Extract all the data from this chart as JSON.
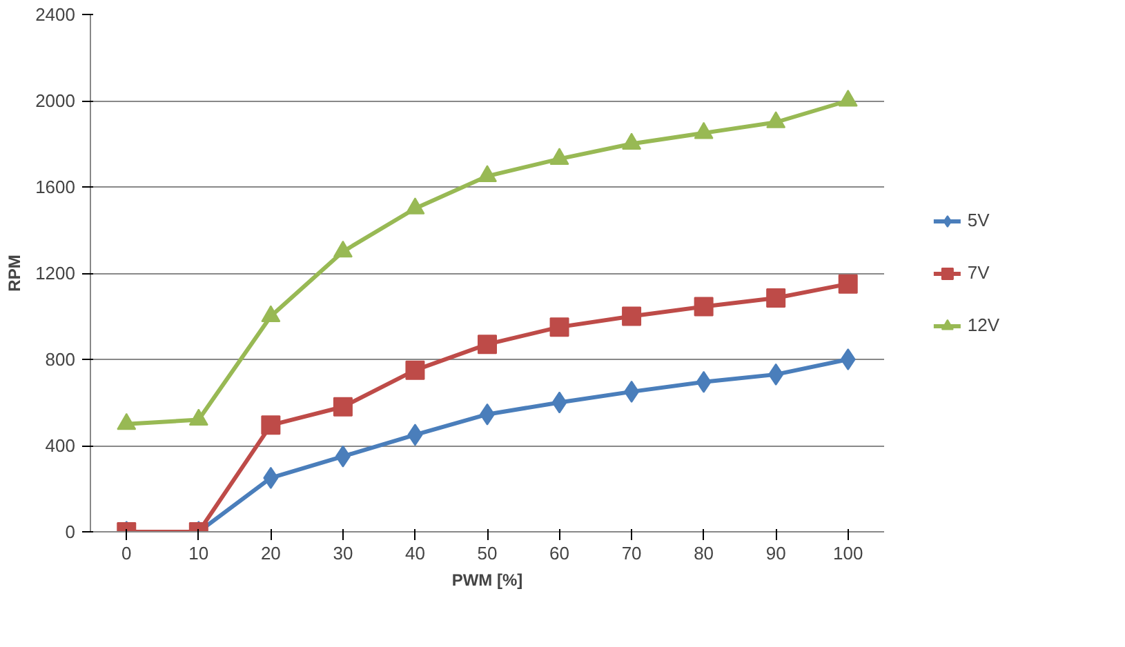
{
  "chart_data": {
    "type": "line",
    "xlabel": "PWM [%]",
    "ylabel": "RPM",
    "categories": [
      "0",
      "10",
      "20",
      "30",
      "40",
      "50",
      "60",
      "70",
      "80",
      "90",
      "100"
    ],
    "ylim": [
      0,
      2400
    ],
    "yticks": [
      0,
      400,
      800,
      1200,
      1600,
      2000,
      2400
    ],
    "grid": "y",
    "legend": "right",
    "series": [
      {
        "name": "5V",
        "color": "#4a7ebb",
        "marker": "diamond",
        "values": [
          0,
          0,
          250,
          350,
          450,
          545,
          600,
          650,
          695,
          730,
          800
        ]
      },
      {
        "name": "7V",
        "color": "#be4b48",
        "marker": "square",
        "values": [
          0,
          0,
          495,
          580,
          750,
          870,
          950,
          1000,
          1045,
          1085,
          1150
        ]
      },
      {
        "name": "12V",
        "color": "#98b954",
        "marker": "triangle",
        "values": [
          500,
          520,
          1000,
          1300,
          1500,
          1650,
          1730,
          1800,
          1850,
          1900,
          2000
        ]
      }
    ]
  }
}
